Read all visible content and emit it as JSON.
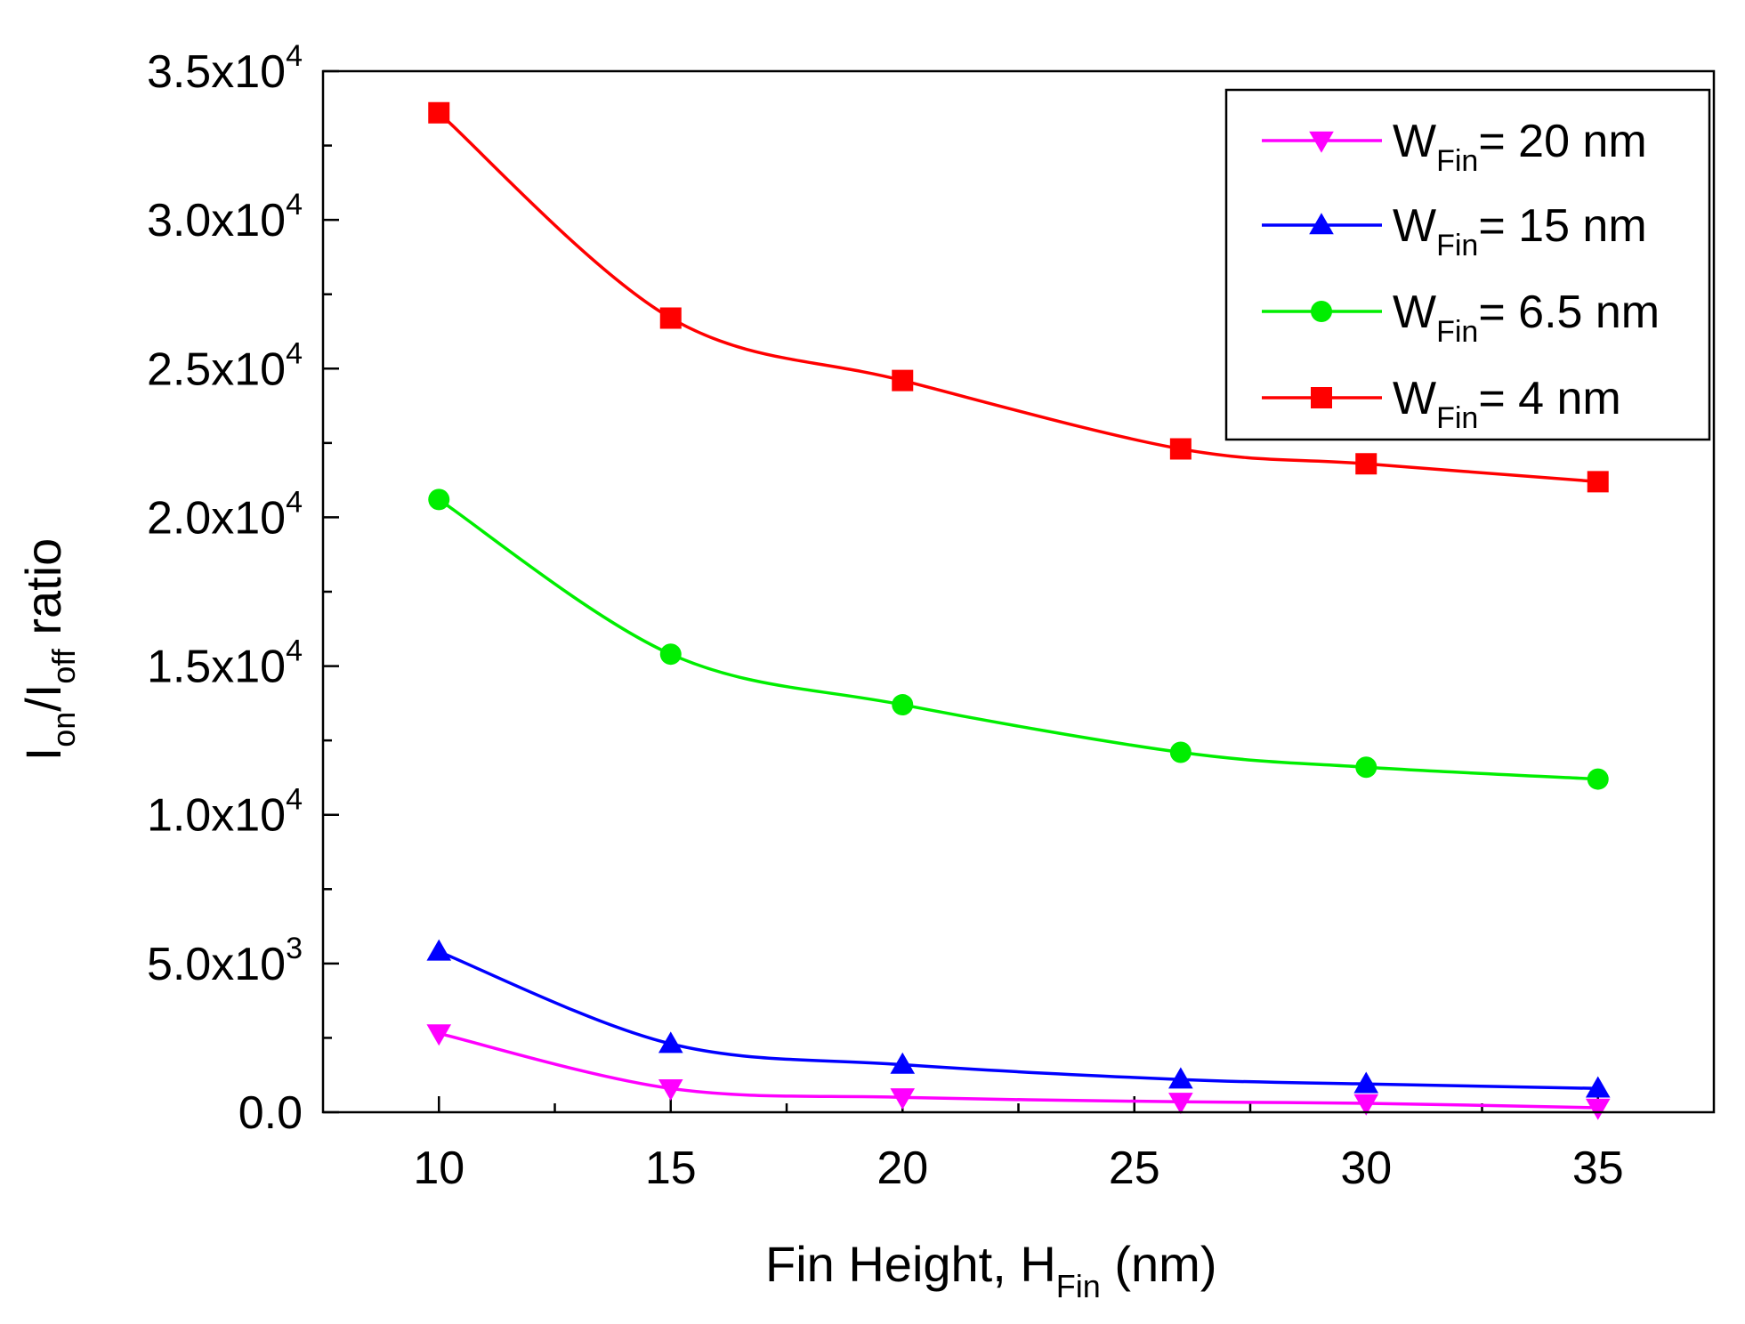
{
  "chart_data": {
    "type": "line",
    "xlabel": {
      "main": "Fin Height, H",
      "sub": "Fin",
      "suffix": " (nm)"
    },
    "ylabel": {
      "p1": "I",
      "s1": "on",
      "p2": "/I",
      "s2": "off",
      "p3": " ratio"
    },
    "xlim": [
      7.5,
      37.5
    ],
    "ylim": [
      0,
      35000
    ],
    "x_ticks": [
      {
        "value": 10,
        "label": "10"
      },
      {
        "value": 15,
        "label": "15"
      },
      {
        "value": 20,
        "label": "20"
      },
      {
        "value": 25,
        "label": "25"
      },
      {
        "value": 30,
        "label": "30"
      },
      {
        "value": 35,
        "label": "35"
      }
    ],
    "x_minor_ticks": [
      12.5,
      17.5,
      22.5,
      27.5,
      32.5
    ],
    "y_ticks": [
      {
        "value": 0,
        "label": "0.0",
        "exp": ""
      },
      {
        "value": 5000,
        "label": "5.0x10",
        "exp": "3"
      },
      {
        "value": 10000,
        "label": "1.0x10",
        "exp": "4"
      },
      {
        "value": 15000,
        "label": "1.5x10",
        "exp": "4"
      },
      {
        "value": 20000,
        "label": "2.0x10",
        "exp": "4"
      },
      {
        "value": 25000,
        "label": "2.5x10",
        "exp": "4"
      },
      {
        "value": 30000,
        "label": "3.0x10",
        "exp": "4"
      },
      {
        "value": 35000,
        "label": "3.5x10",
        "exp": "4"
      }
    ],
    "y_minor_ticks": [
      2500,
      7500,
      12500,
      17500,
      22500,
      27500,
      32500
    ],
    "x": [
      10,
      15,
      20,
      26,
      30,
      35
    ],
    "legend_position": "top-right",
    "series": [
      {
        "name_main": "W",
        "name_sub": "Fin",
        "name_rest": "= 20 nm",
        "color": "#ff00ff",
        "marker": "triangle-down",
        "values": [
          2650,
          800,
          500,
          350,
          300,
          150
        ]
      },
      {
        "name_main": "W",
        "name_sub": "Fin",
        "name_rest": "= 15 nm",
        "color": "#0000ff",
        "marker": "triangle-up",
        "values": [
          5400,
          2300,
          1600,
          1100,
          950,
          800
        ]
      },
      {
        "name_main": "W",
        "name_sub": "Fin",
        "name_rest": "= 6.5 nm",
        "color": "#00ee00",
        "marker": "circle",
        "values": [
          20600,
          15400,
          13700,
          12100,
          11600,
          11200
        ]
      },
      {
        "name_main": "W",
        "name_sub": "Fin",
        "name_rest": "= 4 nm",
        "color": "#ff0000",
        "marker": "square",
        "values": [
          33600,
          26700,
          24600,
          22300,
          21800,
          21200
        ]
      }
    ]
  }
}
